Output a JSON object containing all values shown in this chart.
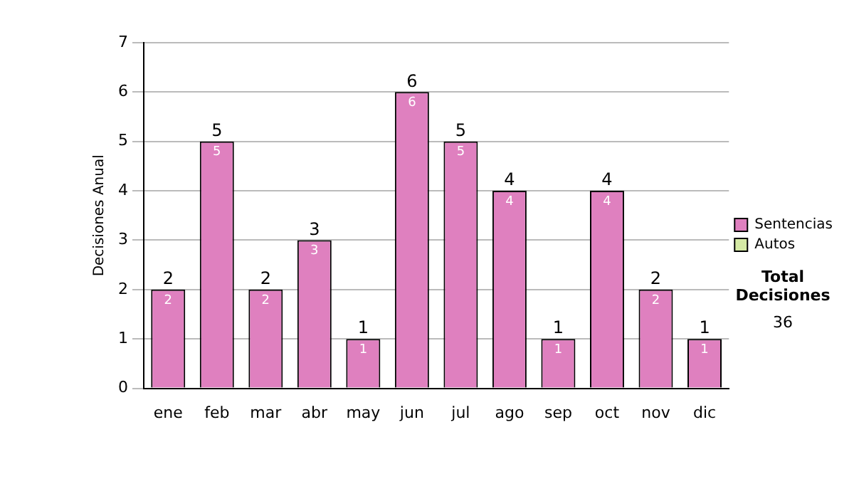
{
  "chart_data": {
    "type": "bar",
    "stacked": true,
    "ylabel": "Decisiones Anual",
    "categories": [
      "ene",
      "feb",
      "mar",
      "abr",
      "may",
      "jun",
      "jul",
      "ago",
      "sep",
      "oct",
      "nov",
      "dic"
    ],
    "series": [
      {
        "name": "Sentencias",
        "color": "#df80bf",
        "values": [
          2,
          5,
          2,
          3,
          1,
          6,
          5,
          4,
          1,
          4,
          2,
          1
        ],
        "value_labels": [
          "2",
          "5",
          "2",
          "3",
          "1",
          "6",
          "5",
          "4",
          "1",
          "4",
          "2",
          "1"
        ]
      },
      {
        "name": "Autos",
        "color": "#d5eaa5",
        "values": [
          0,
          0,
          0,
          0,
          0,
          0,
          0,
          0,
          0,
          0,
          0,
          0
        ],
        "value_labels": [
          null,
          null,
          null,
          null,
          null,
          null,
          null,
          null,
          null,
          null,
          null,
          null
        ]
      }
    ],
    "ylim": [
      0,
      7
    ],
    "yticks": [
      0,
      1,
      2,
      3,
      4,
      5,
      6,
      7
    ],
    "grid": "y",
    "legend": "right",
    "totals": [
      "2",
      "5",
      "2",
      "3",
      "1",
      "6",
      "5",
      "4",
      "1",
      "4",
      "2",
      "1"
    ],
    "annotations": [
      "Total Decisiones",
      "36"
    ]
  }
}
